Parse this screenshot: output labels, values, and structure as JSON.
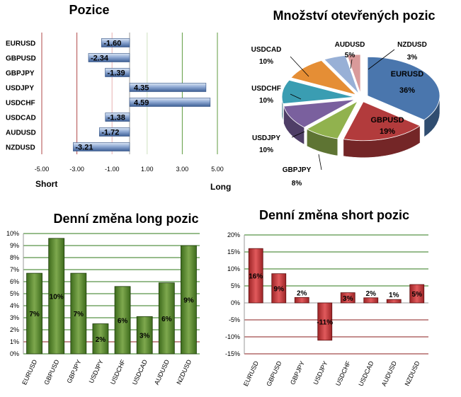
{
  "chart_data": [
    {
      "type": "bar",
      "orientation": "horizontal",
      "title": "Pozice",
      "categories": [
        "EURUSD",
        "GBPUSD",
        "GBPJPY",
        "USDJPY",
        "USDCHF",
        "USDCAD",
        "AUDUSD",
        "NZDUSD"
      ],
      "values": [
        -1.6,
        -2.34,
        -1.39,
        4.35,
        4.59,
        -1.38,
        -1.72,
        -3.21
      ],
      "value_labels": [
        "-1.60",
        "-2.34",
        "-1.39",
        "4.35",
        "4.59",
        "-1.38",
        "-1.72",
        "-3.21"
      ],
      "x_ticks": [
        "-5.00",
        "-3.00",
        "-1.00",
        "1.00",
        "3.00",
        "5.00"
      ],
      "xlim": [
        -5,
        5
      ],
      "short_label": "Short",
      "long_label": "Long",
      "bar_color": "#5b7fb5"
    },
    {
      "type": "pie",
      "title": "Množství otevřených pozic",
      "slices": [
        {
          "name": "EURUSD",
          "value": 36,
          "label": "36%",
          "color": "#4a76ad"
        },
        {
          "name": "GBPUSD",
          "value": 19,
          "label": "19%",
          "color": "#b23b3c"
        },
        {
          "name": "GBPJPY",
          "value": 8,
          "label": "8%",
          "color": "#91b24e"
        },
        {
          "name": "USDJPY",
          "value": 10,
          "label": "10%",
          "color": "#7a609e"
        },
        {
          "name": "USDCHF",
          "value": 10,
          "label": "10%",
          "color": "#3a9db2"
        },
        {
          "name": "USDCAD",
          "value": 10,
          "label": "10%",
          "color": "#e58e35"
        },
        {
          "name": "AUDUSD",
          "value": 5,
          "label": "5%",
          "color": "#98b0d6"
        },
        {
          "name": "NZDUSD",
          "value": 3,
          "label": "3%",
          "color": "#d99a9a"
        }
      ]
    },
    {
      "type": "bar",
      "title": "Denní změna long pozic",
      "categories": [
        "EURUSD",
        "GBPUSD",
        "GBPJPY",
        "USDJPY",
        "USDCHF",
        "USDCAD",
        "AUDUSD",
        "NZDUSD"
      ],
      "values": [
        6.7,
        9.6,
        6.7,
        2.5,
        5.6,
        3.1,
        5.9,
        9.0
      ],
      "value_labels": [
        "7%",
        "10%",
        "7%",
        "2%",
        "6%",
        "3%",
        "6%",
        "9%"
      ],
      "y_ticks": [
        "0%",
        "1%",
        "2%",
        "3%",
        "4%",
        "5%",
        "6%",
        "7%",
        "8%",
        "9%",
        "10%"
      ],
      "ylim": [
        0,
        10
      ],
      "bar_color": "#5f8a2e"
    },
    {
      "type": "bar",
      "title": "Denní změna short pozic",
      "categories": [
        "EURUSD",
        "GBPUSD",
        "GBPJPY",
        "USDJPY",
        "USDCHF",
        "USDCAD",
        "AUDUSD",
        "NZDUSD"
      ],
      "values": [
        16,
        8.6,
        1.6,
        -11,
        3,
        1.5,
        1,
        5.4
      ],
      "value_labels": [
        "16%",
        "9%",
        "2%",
        "-11%",
        "3%",
        "2%",
        "1%",
        "5%"
      ],
      "y_ticks": [
        "20%",
        "15%",
        "10%",
        "5%",
        "0%",
        "-5%",
        "-10%",
        "-15%"
      ],
      "ylim": [
        -15,
        20
      ],
      "bar_color": "#c0393b"
    }
  ]
}
